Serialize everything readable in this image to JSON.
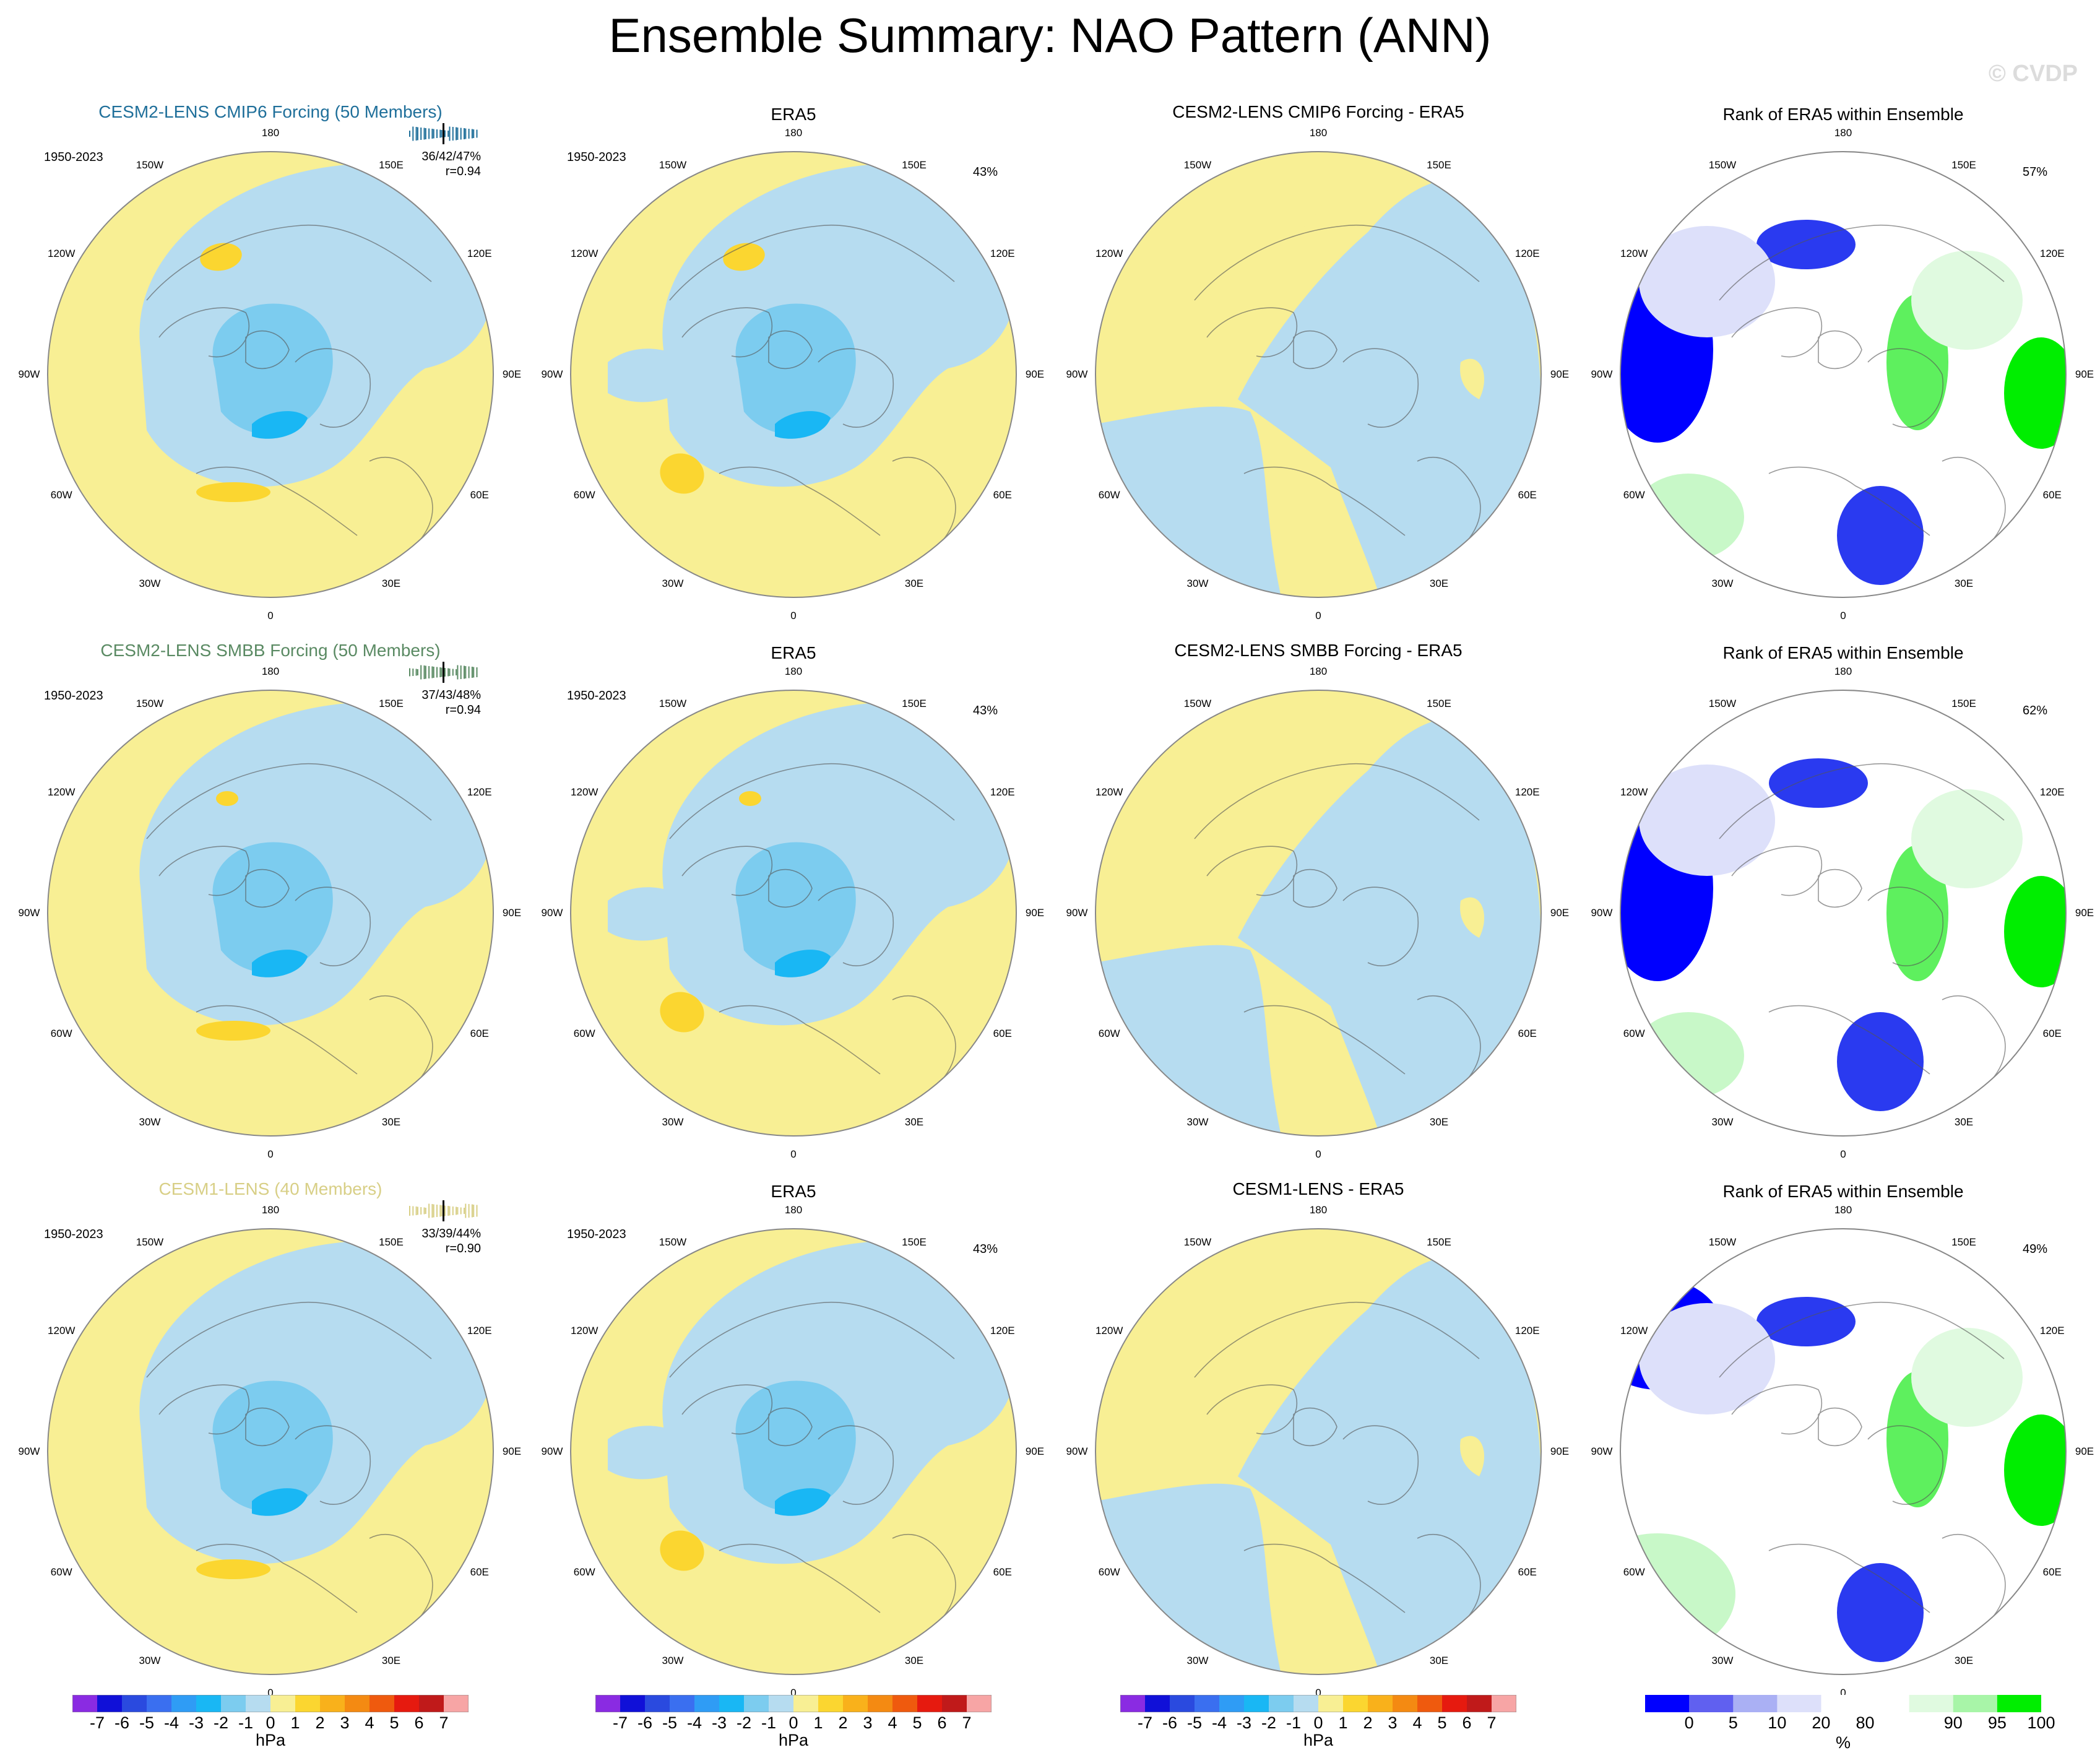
{
  "title": "Ensemble Summary: NAO Pattern (ANN)",
  "watermark": "© CVDP",
  "period": "1950-2023",
  "obs_title": "ERA5",
  "rank_title": "Rank of ERA5 within Ensemble",
  "lon_labels": [
    "180",
    "150E",
    "120E",
    "90E",
    "60E",
    "30E",
    "0",
    "30W",
    "60W",
    "90W",
    "120W",
    "150W"
  ],
  "rows": [
    {
      "model_title": "CESM2-LENS CMIP6 Forcing (50 Members)",
      "model_color": "#1f6f9a",
      "model_stats": "36/42/47%",
      "model_r": "r=0.94",
      "obs_pct": "43%",
      "diff_title": "CESM2-LENS CMIP6 Forcing - ERA5",
      "rank_pct": "57%"
    },
    {
      "model_title": "CESM2-LENS SMBB Forcing (50 Members)",
      "model_color": "#5a8a63",
      "model_stats": "37/43/48%",
      "model_r": "r=0.94",
      "obs_pct": "43%",
      "diff_title": "CESM2-LENS SMBB Forcing - ERA5",
      "rank_pct": "62%"
    },
    {
      "model_title": "CESM1-LENS (40 Members)",
      "model_color": "#d8cf86",
      "model_stats": "33/39/44%",
      "model_r": "r=0.90",
      "obs_pct": "43%",
      "diff_title": "CESM1-LENS - ERA5",
      "rank_pct": "49%"
    }
  ],
  "colorbar_hpa": {
    "labels": [
      "-7",
      "-6",
      "-5",
      "-4",
      "-3",
      "-2",
      "-1",
      "0",
      "1",
      "2",
      "3",
      "4",
      "5",
      "6",
      "7"
    ],
    "colors": [
      "#8a2be2",
      "#1010d8",
      "#2a4adf",
      "#3a6ff0",
      "#2f9cf5",
      "#19b7f4",
      "#7cccef",
      "#b6dcf0",
      "#f8ef94",
      "#fbd630",
      "#f9b11b",
      "#f48a12",
      "#ef5a0e",
      "#e61a0f",
      "#c01a1a",
      "#f7a5a5"
    ],
    "unit": "hPa"
  },
  "colorbar_pct": {
    "labels": [
      "0",
      "5",
      "10",
      "20",
      "80",
      "90",
      "95",
      "100"
    ],
    "colors": [
      "#0000ff",
      "#6060f0",
      "#aab0f4",
      "#dde0fa",
      "#ffffff",
      "#e0fae0",
      "#a8f5a8",
      "#00ee00"
    ],
    "unit": "%"
  },
  "chart_data": [
    {
      "type": "heatmap",
      "panel": "CESM2-LENS CMIP6 Forcing (50 Members)",
      "pattern": "NAO",
      "season": "ANN",
      "units": "hPa",
      "pct_variance": "36/42/47%",
      "pattern_corr": 0.94
    },
    {
      "type": "heatmap",
      "panel": "ERA5",
      "pattern": "NAO",
      "season": "ANN",
      "units": "hPa",
      "pct_variance": "43%"
    },
    {
      "type": "heatmap",
      "panel": "CESM2-LENS CMIP6 Forcing - ERA5",
      "units": "hPa"
    },
    {
      "type": "heatmap",
      "panel": "Rank of ERA5 within Ensemble",
      "units": "%",
      "pct": "57%"
    },
    {
      "type": "heatmap",
      "panel": "CESM2-LENS SMBB Forcing (50 Members)",
      "units": "hPa",
      "pct_variance": "37/43/48%",
      "pattern_corr": 0.94
    },
    {
      "type": "heatmap",
      "panel": "CESM2-LENS SMBB Forcing - ERA5",
      "units": "hPa"
    },
    {
      "type": "heatmap",
      "panel": "Rank of ERA5 within Ensemble",
      "units": "%",
      "pct": "62%"
    },
    {
      "type": "heatmap",
      "panel": "CESM1-LENS (40 Members)",
      "units": "hPa",
      "pct_variance": "33/39/44%",
      "pattern_corr": 0.9
    },
    {
      "type": "heatmap",
      "panel": "CESM1-LENS - ERA5",
      "units": "hPa"
    },
    {
      "type": "heatmap",
      "panel": "Rank of ERA5 within Ensemble",
      "units": "%",
      "pct": "49%"
    }
  ]
}
